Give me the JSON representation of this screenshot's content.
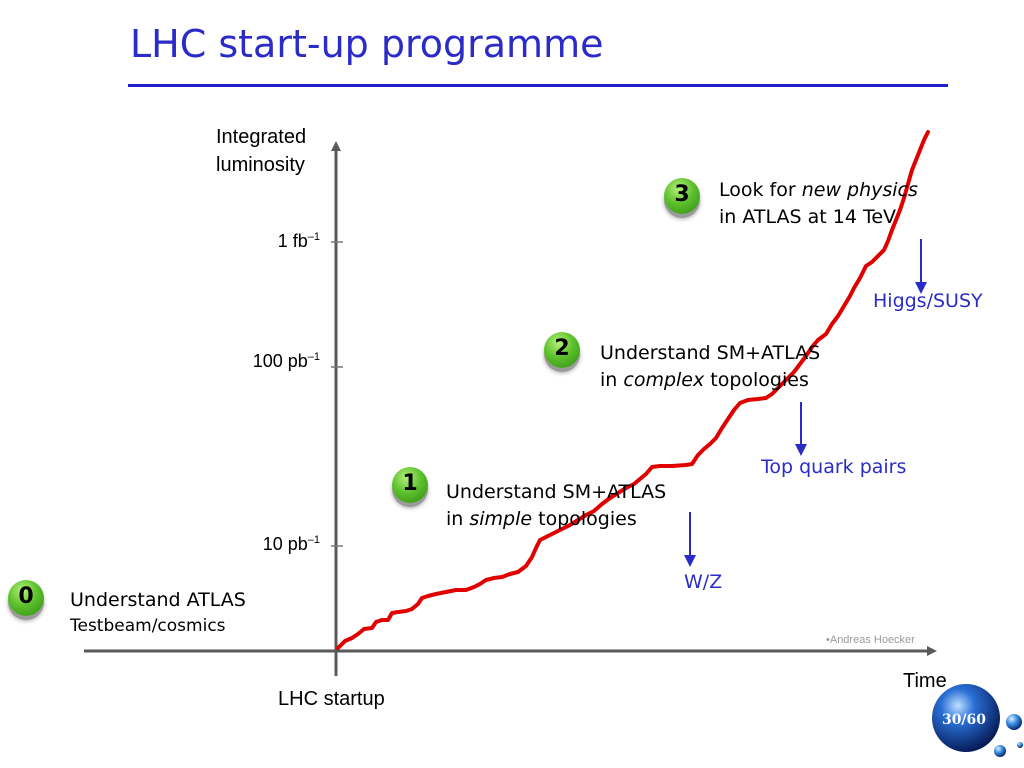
{
  "slide": {
    "title": "LHC start-up programme",
    "credit": "•Andreas Hoecker",
    "page_number": "30/60",
    "accent_color": "#2b2bc7",
    "curve_color": "#e00000"
  },
  "axes": {
    "y_label_line1": "Integrated",
    "y_label_line2": "luminosity",
    "x_label": "Time",
    "origin_label": "LHC startup",
    "ticks": [
      {
        "base": "1 fb",
        "exp": "–1"
      },
      {
        "base": "100 pb",
        "exp": "–1"
      },
      {
        "base": "10 pb",
        "exp": "–1"
      }
    ]
  },
  "steps": [
    {
      "number": "0",
      "line1": "Understand ATLAS",
      "line2": "Testbeam/cosmics"
    },
    {
      "number": "1",
      "line1": "Understand SM+ATLAS",
      "line2_pre": "in ",
      "line2_em": "simple",
      "line2_post": " topologies",
      "note": "W/Z"
    },
    {
      "number": "2",
      "line1": "Understand SM+ATLAS",
      "line2_pre": "in ",
      "line2_em": "complex",
      "line2_post": " topologies",
      "note": "Top quark pairs"
    },
    {
      "number": "3",
      "line1_pre": "Look for ",
      "line1_em": "new physics",
      "line2": "in ATLAS at 14 TeV",
      "note": "Higgs/SUSY"
    }
  ]
}
